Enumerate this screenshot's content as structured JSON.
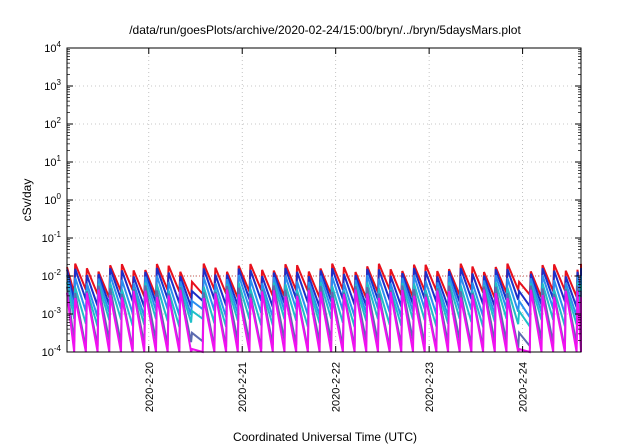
{
  "chart_data": {
    "type": "line",
    "title": "/data/run/goesPlots/archive/2020-02-24/15:00/bryn/../bryn/5daysMars.plot",
    "xlabel": "Coordinated Universal Time (UTC)",
    "ylabel": "cSv/day",
    "y_scale": "log",
    "ylim": [
      0.0001,
      10000
    ],
    "y_ticks": [
      {
        "base": "10",
        "exp": "-4",
        "value": 0.0001
      },
      {
        "base": "10",
        "exp": "-3",
        "value": 0.001
      },
      {
        "base": "10",
        "exp": "-2",
        "value": 0.01
      },
      {
        "base": "10",
        "exp": "-1",
        "value": 0.1
      },
      {
        "base": "10",
        "exp": "0",
        "value": 1
      },
      {
        "base": "10",
        "exp": "1",
        "value": 10
      },
      {
        "base": "10",
        "exp": "2",
        "value": 100
      },
      {
        "base": "10",
        "exp": "3",
        "value": 1000
      },
      {
        "base": "10",
        "exp": "4",
        "value": 10000
      }
    ],
    "xlim": [
      "2020-02-19 03:00",
      "2020-02-24 15:00"
    ],
    "x_ticks": [
      "2020-2-20",
      "2020-2-21",
      "2020-2-22",
      "2020-2-23",
      "2020-2-24"
    ],
    "grid": true,
    "reference_line": {
      "value": 0.01,
      "color": "#c85a50",
      "style": "dotted"
    },
    "pattern": {
      "period_hours": 3,
      "gaps_near": [
        "2020-02-20 12:00",
        "2020-02-24 00:00"
      ]
    },
    "series": [
      {
        "color": "#e8101c",
        "peak": 0.017,
        "trough": 0.0035
      },
      {
        "color": "#1c2ec8",
        "peak": 0.013,
        "trough": 0.002
      },
      {
        "color": "#2a8ff0",
        "peak": 0.0085,
        "trough": 0.0011
      },
      {
        "color": "#1fbfc8",
        "peak": 0.0055,
        "trough": 0.0006
      },
      {
        "color": "#5c6bb0",
        "peak": 0.0045,
        "trough": 0.00016
      },
      {
        "color": "#f010f0",
        "peak": 0.0035,
        "trough": 6e-05
      }
    ]
  }
}
